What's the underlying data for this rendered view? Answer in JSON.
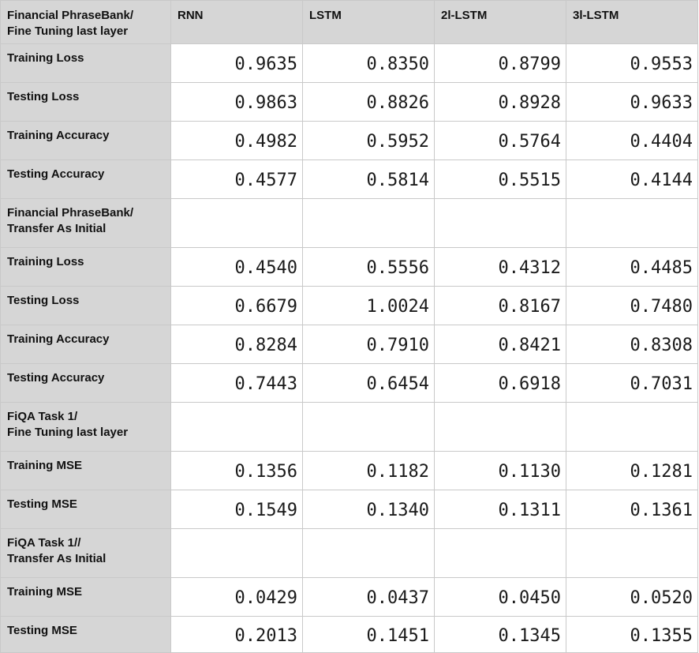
{
  "header": {
    "corner_line1": "Financial PhraseBank/",
    "corner_line2": "Fine Tuning last layer",
    "columns": [
      "RNN",
      "LSTM",
      "2l-LSTM",
      "3l-LSTM"
    ]
  },
  "rows": {
    "r1": {
      "label": "Training Loss",
      "values": [
        "0.9635",
        "0.8350",
        "0.8799",
        "0.9553"
      ]
    },
    "r2": {
      "label": "Testing Loss",
      "values": [
        "0.9863",
        "0.8826",
        "0.8928",
        "0.9633"
      ]
    },
    "r3": {
      "label": "Training Accuracy",
      "values": [
        "0.4982",
        "0.5952",
        "0.5764",
        "0.4404"
      ]
    },
    "r4": {
      "label": "Testing Accuracy",
      "values": [
        "0.4577",
        "0.5814",
        "0.5515",
        "0.4144"
      ]
    },
    "s1": {
      "line1": "Financial PhraseBank/",
      "line2": "Transfer As Initial"
    },
    "r5": {
      "label": "Training Loss",
      "values": [
        "0.4540",
        "0.5556",
        "0.4312",
        "0.4485"
      ]
    },
    "r6": {
      "label": "Testing Loss",
      "values": [
        "0.6679",
        "1.0024",
        "0.8167",
        "0.7480"
      ]
    },
    "r7": {
      "label": "Training Accuracy",
      "values": [
        "0.8284",
        "0.7910",
        "0.8421",
        "0.8308"
      ]
    },
    "r8": {
      "label": "Testing Accuracy",
      "values": [
        "0.7443",
        "0.6454",
        "0.6918",
        "0.7031"
      ]
    },
    "s2": {
      "line1": "FiQA Task 1/",
      "line2": "Fine Tuning last layer"
    },
    "r9": {
      "label": "Training MSE",
      "values": [
        "0.1356",
        "0.1182",
        "0.1130",
        "0.1281"
      ]
    },
    "r10": {
      "label": "Testing MSE",
      "values": [
        "0.1549",
        "0.1340",
        "0.1311",
        "0.1361"
      ]
    },
    "s3": {
      "line1": "FiQA Task 1//",
      "line2": "Transfer As Initial"
    },
    "r11": {
      "label": "Training MSE",
      "values": [
        "0.0429",
        "0.0437",
        "0.0450",
        "0.0520"
      ]
    },
    "r12": {
      "label": "Testing MSE",
      "values": [
        "0.2013",
        "0.1451",
        "0.1345",
        "0.1355"
      ]
    }
  }
}
